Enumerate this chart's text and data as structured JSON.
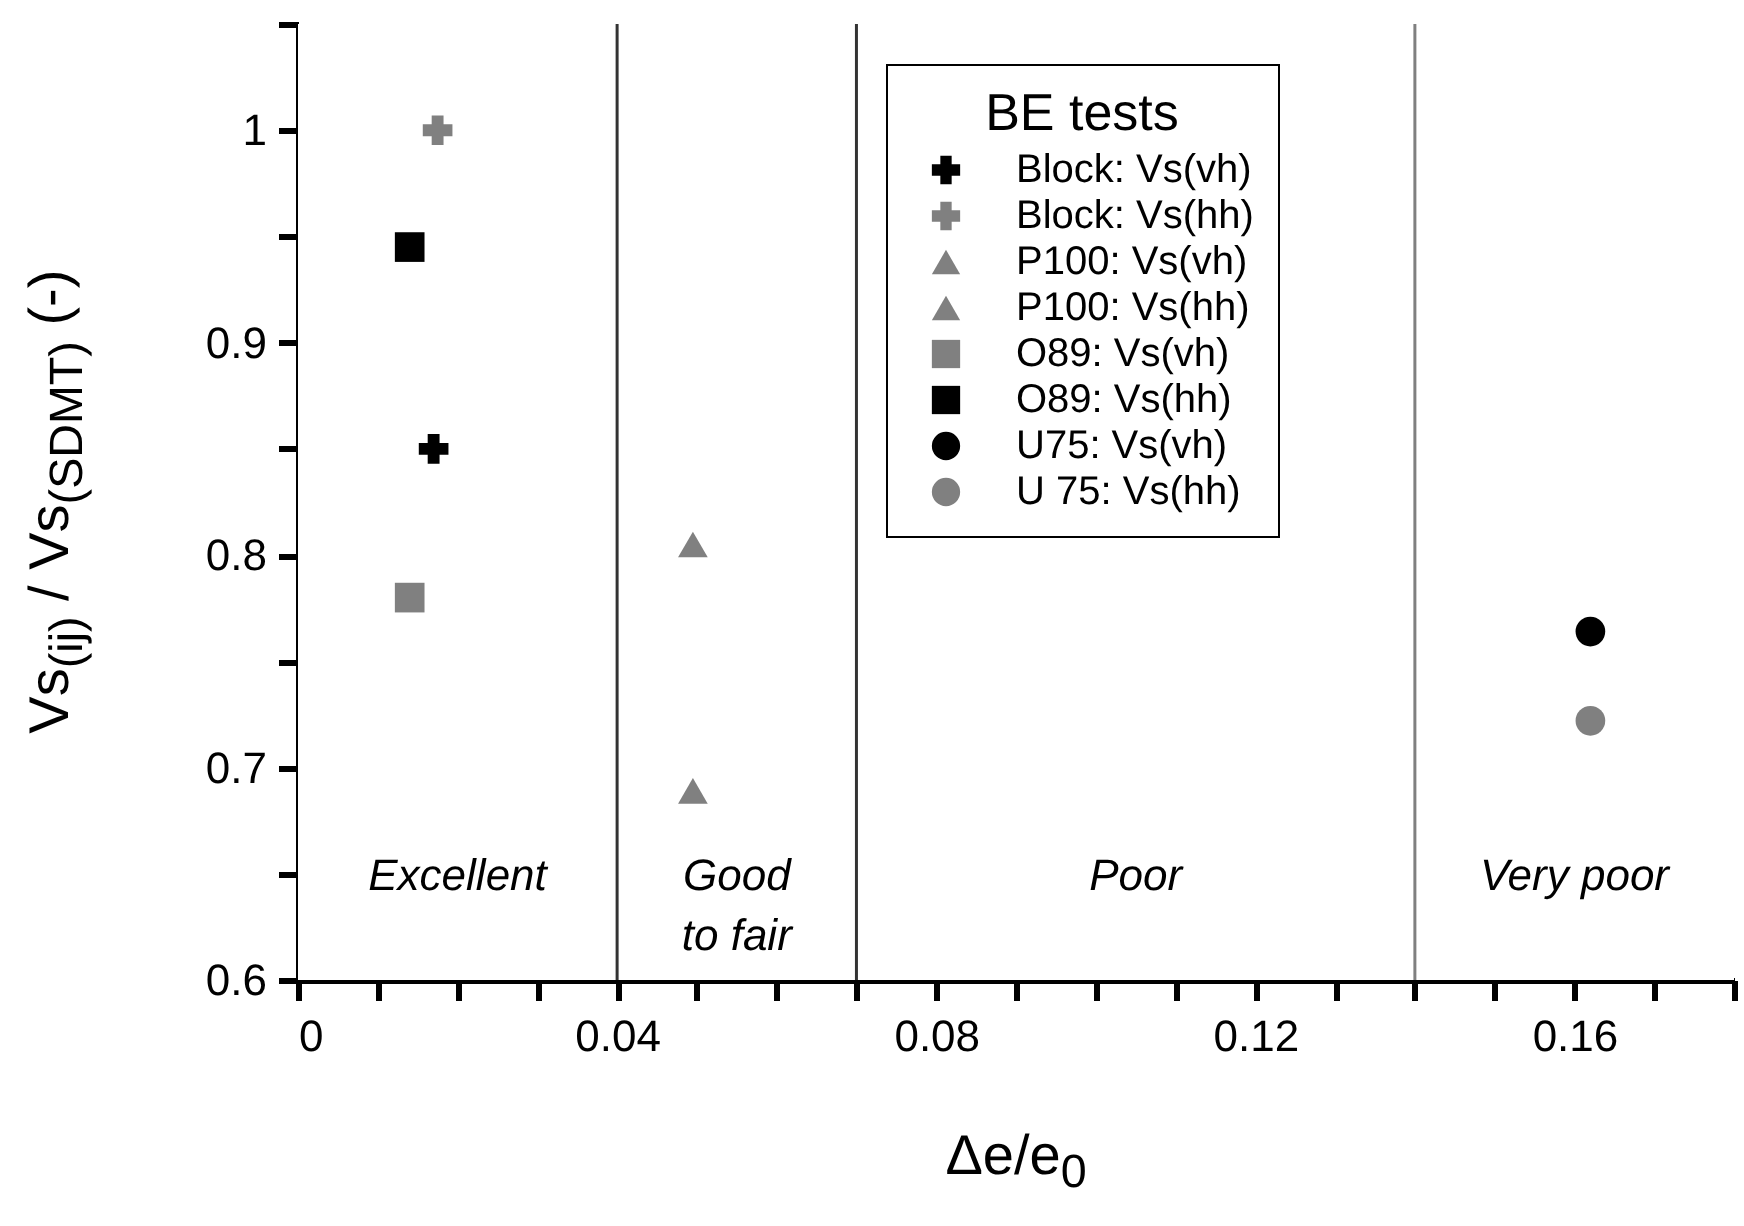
{
  "chart_data": {
    "type": "scatter",
    "xlabel": "Δe/e$_{0}$",
    "ylabel": "Vs$_{(ij)}$ / Vs$_{(SDMT)}$ (-)",
    "legend_title": "BE tests",
    "legend": "top right",
    "grid": false,
    "xlim": [
      0,
      0.18
    ],
    "ylim": [
      0.6,
      1.05
    ],
    "xticks": [
      0,
      {
        "value": 0.01,
        "label": null
      },
      {
        "value": 0.02,
        "label": null
      },
      {
        "value": 0.03,
        "label": null
      },
      0.04,
      {
        "value": 0.05,
        "label": null
      },
      {
        "value": 0.06,
        "label": null
      },
      {
        "value": 0.07,
        "label": null
      },
      0.08,
      {
        "value": 0.09,
        "label": null
      },
      {
        "value": 0.1,
        "label": null
      },
      {
        "value": 0.11,
        "label": null
      },
      0.12,
      {
        "value": 0.13,
        "label": null
      },
      {
        "value": 0.14,
        "label": null
      },
      {
        "value": 0.15,
        "label": null
      },
      0.16,
      {
        "value": 0.17,
        "label": null
      },
      {
        "value": 0.18,
        "label": null
      }
    ],
    "yticks": [
      0.6,
      {
        "value": 0.65,
        "label": null
      },
      0.7,
      {
        "value": 0.75,
        "label": null
      },
      0.8,
      {
        "value": 0.85,
        "label": null
      },
      0.9,
      {
        "value": 0.95,
        "label": null
      },
      1,
      {
        "value": 1.05,
        "label": null
      }
    ],
    "series": [
      {
        "name": "Block: Vs(vh)",
        "color": "#000000",
        "marker": "cross",
        "x": [
          0.017
        ],
        "values": [
          0.85
        ]
      },
      {
        "name": "Block: Vs(hh)",
        "color": "#808080",
        "marker": "cross",
        "x": [
          0.0175
        ],
        "values": [
          1.0
        ]
      },
      {
        "name": "P100: Vs(vh)",
        "color": "#808080",
        "marker": "triangle",
        "x": [
          0.0495
        ],
        "values": [
          0.689
        ]
      },
      {
        "name": "P100: Vs(hh)",
        "color": "#808080",
        "marker": "triangle",
        "x": [
          0.0495
        ],
        "values": [
          0.805
        ]
      },
      {
        "name": "O89: Vs(vh)",
        "color": "#808080",
        "marker": "square",
        "x": [
          0.014
        ],
        "values": [
          0.78
        ]
      },
      {
        "name": "O89: Vs(hh)",
        "color": "#000000",
        "marker": "square",
        "x": [
          0.014
        ],
        "values": [
          0.945
        ]
      },
      {
        "name": "U75: Vs(vh)",
        "color": "#000000",
        "marker": "circle",
        "x": [
          0.162
        ],
        "values": [
          0.764
        ]
      },
      {
        "name": "U 75: Vs(hh)",
        "color": "#808080",
        "marker": "circle",
        "x": [
          0.162
        ],
        "values": [
          0.722
        ]
      }
    ],
    "ref_lines": [
      {
        "axis": "x",
        "value": 0.04,
        "color": "#333333"
      },
      {
        "axis": "x",
        "value": 0.07,
        "color": "#333333"
      },
      {
        "axis": "x",
        "value": 0.14,
        "color": "#808080"
      }
    ],
    "bands": [
      {
        "axis": "x",
        "from": 0,
        "to": 0.04,
        "label": "Excellent",
        "color": "#ffffff"
      },
      {
        "axis": "x",
        "from": 0.04,
        "to": 0.07,
        "label": "Good\nto fair",
        "color": "#ffffff"
      },
      {
        "axis": "x",
        "from": 0.07,
        "to": 0.14,
        "label": "Poor",
        "color": "#ffffff"
      },
      {
        "axis": "x",
        "from": 0.14,
        "to": 0.18,
        "label": "Very poor",
        "color": "#ffffff"
      }
    ]
  }
}
